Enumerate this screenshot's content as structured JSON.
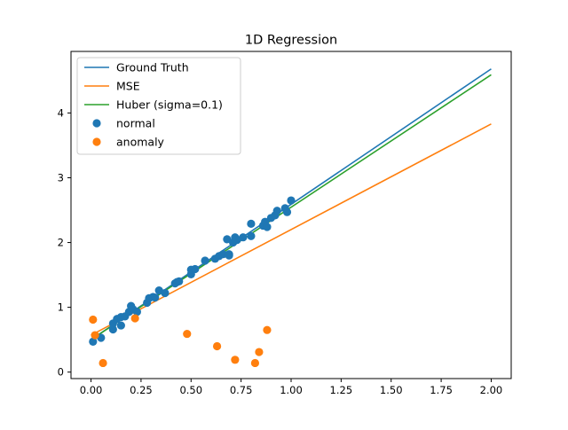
{
  "chart_data": {
    "type": "scatter",
    "title": "1D Regression",
    "xlabel": "",
    "ylabel": "",
    "xlim": [
      -0.1,
      2.1
    ],
    "ylim": [
      -0.1,
      4.95
    ],
    "xticks": [
      0.0,
      0.25,
      0.5,
      0.75,
      1.0,
      1.25,
      1.5,
      1.75,
      2.0
    ],
    "xtick_labels": [
      "0.00",
      "0.25",
      "0.50",
      "0.75",
      "1.00",
      "1.25",
      "1.50",
      "1.75",
      "2.00"
    ],
    "yticks": [
      0,
      1,
      2,
      3,
      4
    ],
    "ytick_labels": [
      "0",
      "1",
      "2",
      "3",
      "4"
    ],
    "grid": false,
    "legend_position": "top-left",
    "lines": [
      {
        "name": "Ground Truth",
        "color": "#1f77b4",
        "x": [
          0.0,
          2.0
        ],
        "y": [
          0.5,
          4.68
        ]
      },
      {
        "name": "MSE",
        "color": "#ff7f0e",
        "x": [
          0.0,
          2.0
        ],
        "y": [
          0.57,
          3.83
        ]
      },
      {
        "name": "Huber (sigma=0.1)",
        "color": "#2ca02c",
        "x": [
          0.0,
          2.0
        ],
        "y": [
          0.5,
          4.59
        ]
      }
    ],
    "scatter": [
      {
        "name": "normal",
        "color": "#1f77b4",
        "x": [
          0.01,
          0.05,
          0.11,
          0.11,
          0.13,
          0.15,
          0.15,
          0.17,
          0.19,
          0.2,
          0.21,
          0.23,
          0.28,
          0.29,
          0.31,
          0.32,
          0.34,
          0.37,
          0.42,
          0.43,
          0.44,
          0.5,
          0.5,
          0.52,
          0.57,
          0.62,
          0.64,
          0.66,
          0.68,
          0.69,
          0.69,
          0.71,
          0.72,
          0.73,
          0.76,
          0.8,
          0.8,
          0.86,
          0.87,
          0.88,
          0.9,
          0.92,
          0.93,
          0.97,
          0.98,
          1.0
        ],
        "y": [
          0.47,
          0.53,
          0.66,
          0.75,
          0.82,
          0.72,
          0.85,
          0.86,
          0.93,
          1.02,
          0.97,
          0.93,
          1.07,
          1.14,
          1.16,
          1.15,
          1.26,
          1.22,
          1.37,
          1.39,
          1.4,
          1.58,
          1.51,
          1.59,
          1.72,
          1.75,
          1.79,
          1.82,
          2.05,
          1.82,
          1.8,
          2.0,
          2.08,
          2.04,
          2.08,
          2.29,
          2.1,
          2.26,
          2.32,
          2.24,
          2.38,
          2.42,
          2.49,
          2.53,
          2.47,
          2.65
        ]
      },
      {
        "name": "anomaly",
        "color": "#ff7f0e",
        "x": [
          0.01,
          0.02,
          0.06,
          0.22,
          0.48,
          0.63,
          0.72,
          0.82,
          0.84,
          0.88
        ],
        "y": [
          0.81,
          0.57,
          0.14,
          0.83,
          0.59,
          0.4,
          0.19,
          0.14,
          0.31,
          0.65
        ]
      }
    ]
  }
}
